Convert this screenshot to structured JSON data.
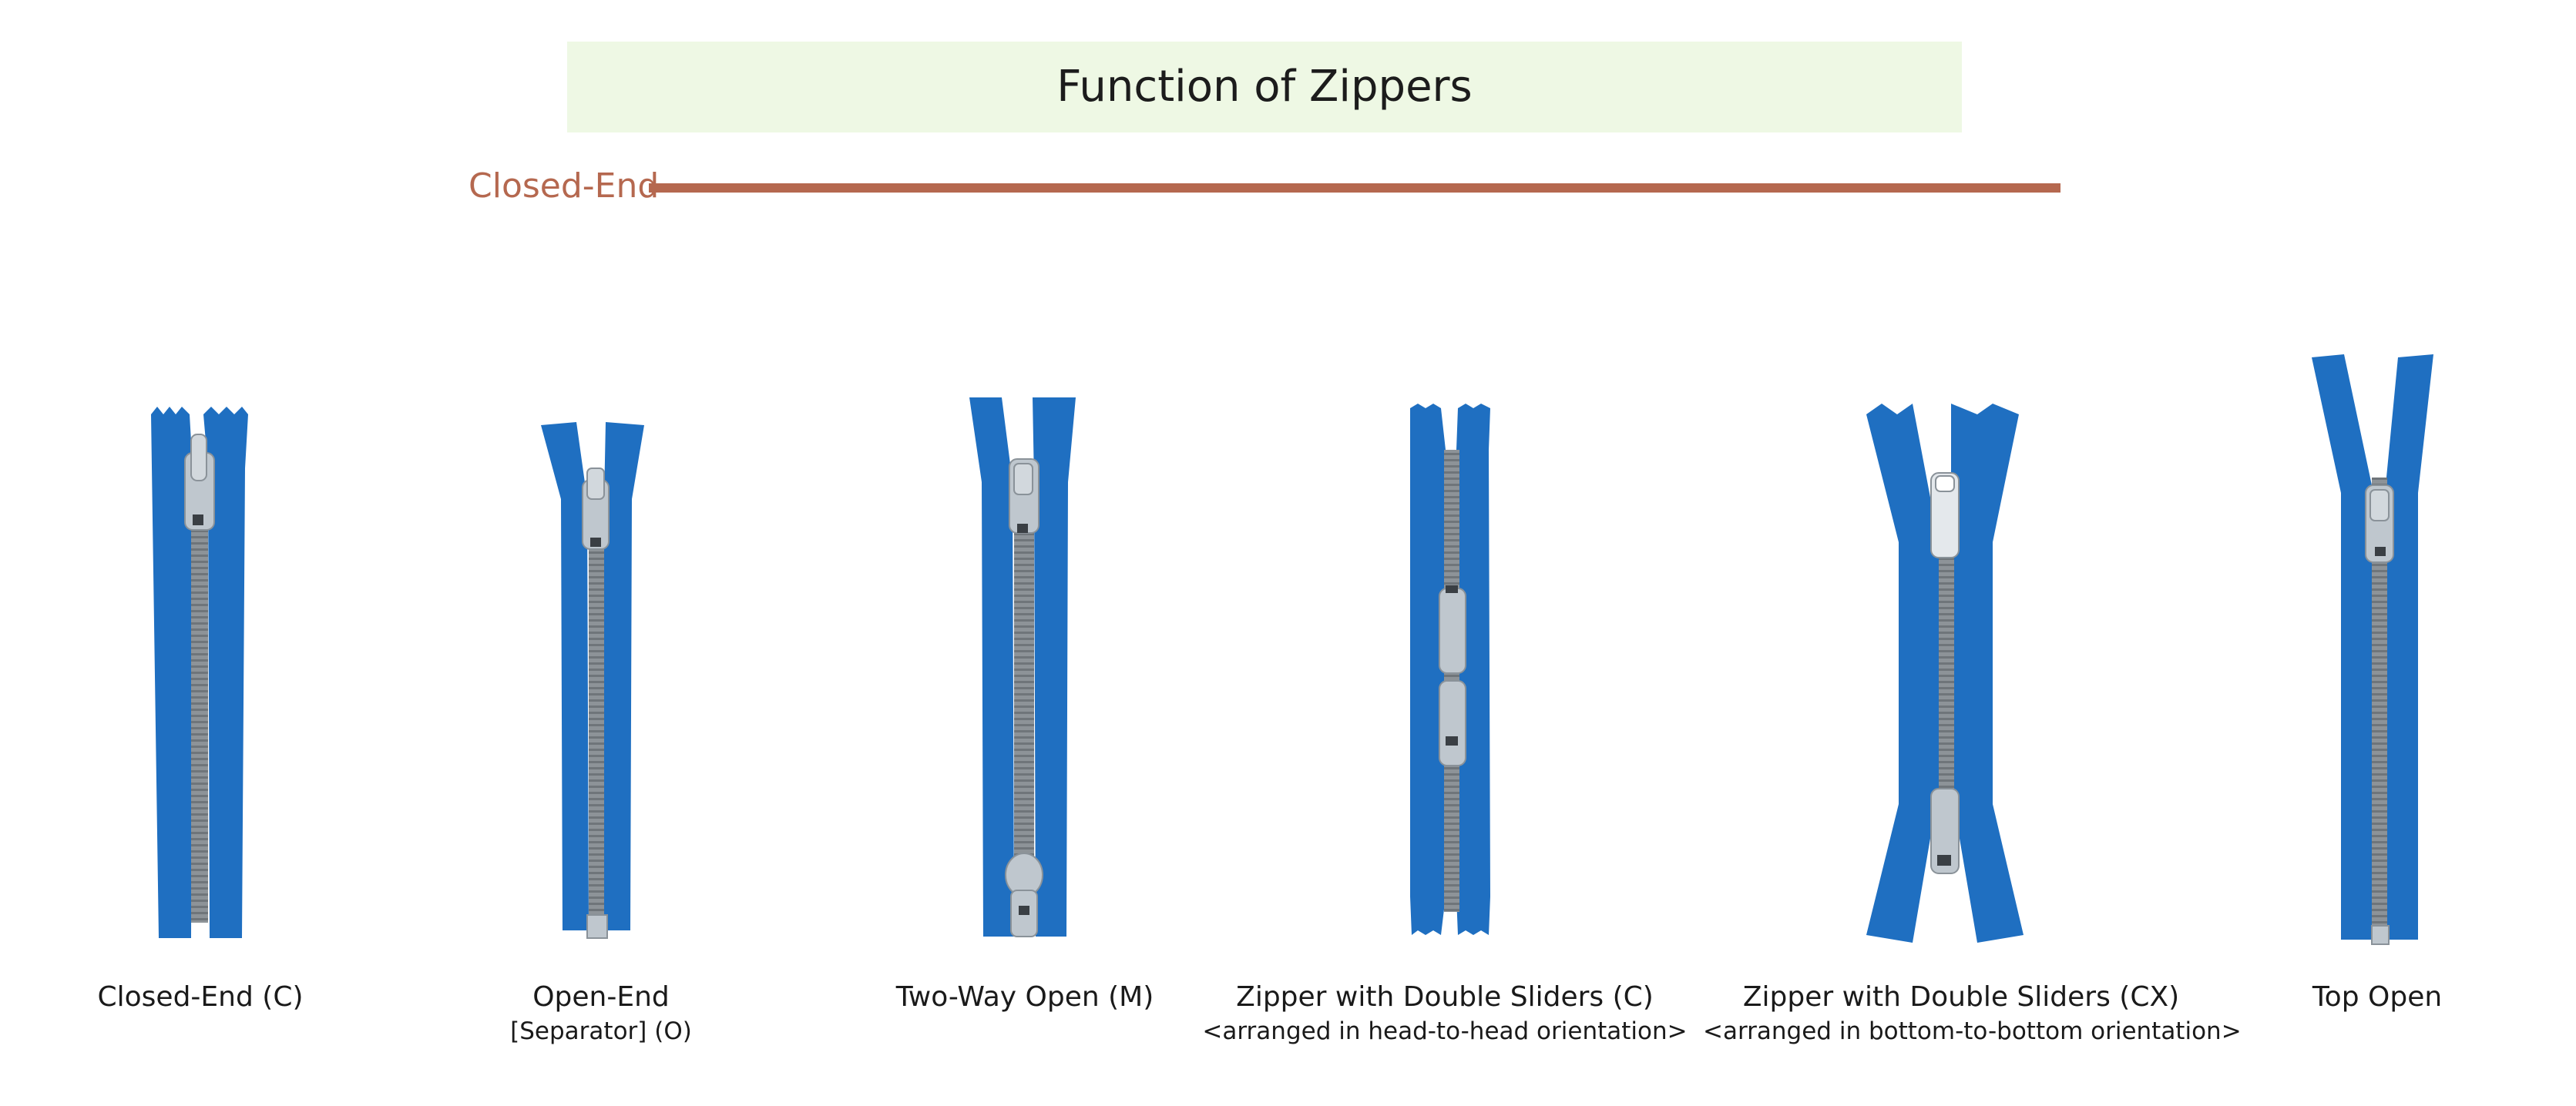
{
  "header": {
    "title": "Function of Zippers"
  },
  "section": {
    "label": "Closed-End"
  },
  "colors": {
    "tape": "#1f6fc1",
    "teeth": "#8d9398",
    "slider": "#bfc7ce",
    "accent": "#b5684f",
    "title_bg": "#eef8e4"
  },
  "zippers": [
    {
      "caption": "Closed-End (C)",
      "subcaption": ""
    },
    {
      "caption": "Open-End",
      "subcaption": "[Separator] (O)"
    },
    {
      "caption": "Two-Way Open (M)",
      "subcaption": ""
    },
    {
      "caption": "Zipper with Double Sliders (C)",
      "subcaption": "<arranged in head-to-head orientation>"
    },
    {
      "caption": "Zipper with Double Sliders (CX)",
      "subcaption": "<arranged in bottom-to-bottom orientation>"
    },
    {
      "caption": "Top Open",
      "subcaption": ""
    }
  ]
}
